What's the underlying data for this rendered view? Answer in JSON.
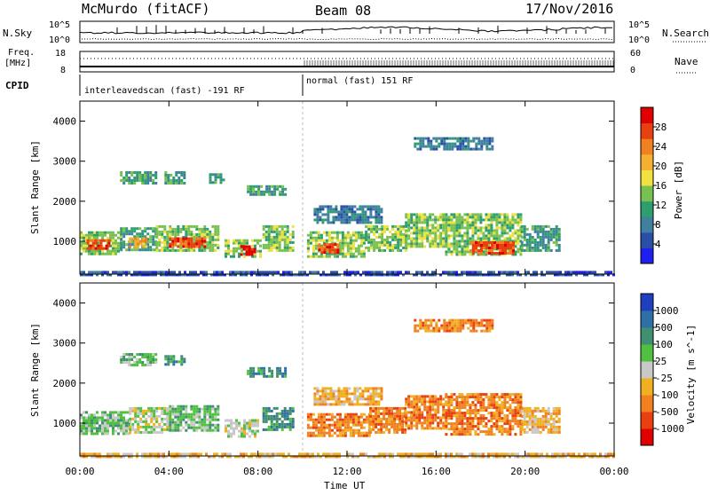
{
  "header": {
    "station": "McMurdo (fitACF)",
    "beam": "Beam 08",
    "date": "17/Nov/2016"
  },
  "noise_panel": {
    "left_label": "N.Sky",
    "right_label": "N.Search",
    "left_top_tick": "10^5",
    "left_bottom_tick": "10^0",
    "right_top_tick": "10^5",
    "right_bottom_tick": "10^0"
  },
  "freq_panel": {
    "left_label_1": "Freq.",
    "left_label_2": "[MHz]",
    "left_top_tick": "18",
    "left_bottom_tick": "8",
    "right_label": "Nave",
    "right_top_tick": "60",
    "right_bottom_tick": "0"
  },
  "cpid_panel": {
    "label": "CPID",
    "segments": [
      {
        "text": "interleavedscan (fast) -191 RF",
        "start_hour": 0
      },
      {
        "text": "normal (fast) 151 RF",
        "start_hour": 10
      }
    ]
  },
  "x_axis": {
    "label": "Time UT",
    "ticks": [
      "00:00",
      "04:00",
      "08:00",
      "12:00",
      "16:00",
      "20:00",
      "00:00"
    ],
    "tick_hours": [
      0,
      4,
      8,
      12,
      16,
      20,
      24
    ]
  },
  "power_panel": {
    "ylabel": "Slant Range [km]",
    "yticks": [
      "1000",
      "2000",
      "3000",
      "4000"
    ],
    "cbar_label": "Power [dB]",
    "cbar_ticks": [
      "4",
      "8",
      "12",
      "16",
      "20",
      "24",
      "28"
    ],
    "cbar_colors": [
      "#1f1fef",
      "#2a4fa6",
      "#3f7fa0",
      "#2e9e6e",
      "#78c050",
      "#f0e040",
      "#f5b030",
      "#f08020",
      "#e84010",
      "#e00000"
    ]
  },
  "velocity_panel": {
    "ylabel": "Slant Range [km]",
    "yticks": [
      "1000",
      "2000",
      "3000",
      "4000"
    ],
    "cbar_label": "Velocity [m s^-1]",
    "cbar_ticks": [
      "1000",
      "500",
      "100",
      "25",
      "-25",
      "-100",
      "-500",
      "-1000"
    ],
    "cbar_colors": [
      "#1f3fbf",
      "#2f6fa8",
      "#3f8f70",
      "#50c040",
      "#c8c8c8",
      "#f0b020",
      "#f08020",
      "#e84010",
      "#e00000"
    ]
  },
  "chart_data": {
    "type": "heatmap",
    "x_range_hours": [
      0,
      24
    ],
    "y_range_km": [
      180,
      4500
    ],
    "power_regions": [
      {
        "t0": 0.0,
        "t1": 1.8,
        "r0": 700,
        "r1": 1250,
        "level": 4
      },
      {
        "t0": 0.3,
        "t1": 1.3,
        "r0": 820,
        "r1": 1050,
        "level": 8
      },
      {
        "t0": 1.8,
        "t1": 3.4,
        "r0": 780,
        "r1": 1350,
        "level": 3
      },
      {
        "t0": 2.2,
        "t1": 3.0,
        "r0": 900,
        "r1": 1100,
        "level": 6
      },
      {
        "t0": 3.4,
        "t1": 6.2,
        "r0": 750,
        "r1": 1400,
        "level": 4
      },
      {
        "t0": 4.0,
        "t1": 5.6,
        "r0": 850,
        "r1": 1100,
        "level": 8
      },
      {
        "t0": 6.5,
        "t1": 8.1,
        "r0": 650,
        "r1": 1050,
        "level": 4
      },
      {
        "t0": 7.2,
        "t1": 7.9,
        "r0": 700,
        "r1": 900,
        "level": 9
      },
      {
        "t0": 8.2,
        "t1": 9.6,
        "r0": 800,
        "r1": 1400,
        "level": 4
      },
      {
        "t0": 10.2,
        "t1": 12.8,
        "r0": 650,
        "r1": 1250,
        "level": 4
      },
      {
        "t0": 10.7,
        "t1": 11.6,
        "r0": 700,
        "r1": 950,
        "level": 8
      },
      {
        "t0": 12.8,
        "t1": 14.6,
        "r0": 800,
        "r1": 1400,
        "level": 4
      },
      {
        "t0": 14.6,
        "t1": 16.4,
        "r0": 850,
        "r1": 1700,
        "level": 4
      },
      {
        "t0": 16.4,
        "t1": 19.8,
        "r0": 700,
        "r1": 1700,
        "level": 4
      },
      {
        "t0": 17.5,
        "t1": 19.5,
        "r0": 700,
        "r1": 1000,
        "level": 8
      },
      {
        "t0": 19.8,
        "t1": 21.5,
        "r0": 800,
        "r1": 1400,
        "level": 3
      },
      {
        "t0": 1.8,
        "t1": 3.4,
        "r0": 2450,
        "r1": 2750,
        "level": 3
      },
      {
        "t0": 3.8,
        "t1": 4.7,
        "r0": 2450,
        "r1": 2750,
        "level": 3
      },
      {
        "t0": 5.8,
        "t1": 6.5,
        "r0": 2450,
        "r1": 2700,
        "level": 3
      },
      {
        "t0": 7.5,
        "t1": 9.2,
        "r0": 2200,
        "r1": 2400,
        "level": 3
      },
      {
        "t0": 10.5,
        "t1": 13.5,
        "r0": 1500,
        "r1": 1900,
        "level": 2
      },
      {
        "t0": 15.0,
        "t1": 18.5,
        "r0": 3300,
        "r1": 3600,
        "level": 2
      },
      {
        "t0": 0.0,
        "t1": 24.0,
        "r0": 180,
        "r1": 260,
        "level": 1
      }
    ],
    "velocity_regions": [
      {
        "t0": 0.0,
        "t1": 2.2,
        "r0": 750,
        "r1": 1300,
        "level": 3
      },
      {
        "t0": 2.2,
        "t1": 4.0,
        "r0": 800,
        "r1": 1400,
        "level": 4
      },
      {
        "t0": 4.0,
        "t1": 6.2,
        "r0": 800,
        "r1": 1450,
        "level": 3
      },
      {
        "t0": 6.5,
        "t1": 8.0,
        "r0": 700,
        "r1": 1100,
        "level": 4
      },
      {
        "t0": 8.2,
        "t1": 9.6,
        "r0": 850,
        "r1": 1400,
        "level": 2
      },
      {
        "t0": 10.2,
        "t1": 13.0,
        "r0": 700,
        "r1": 1250,
        "level": 6
      },
      {
        "t0": 13.0,
        "t1": 14.6,
        "r0": 800,
        "r1": 1400,
        "level": 6
      },
      {
        "t0": 14.6,
        "t1": 16.4,
        "r0": 850,
        "r1": 1700,
        "level": 6
      },
      {
        "t0": 16.4,
        "t1": 19.8,
        "r0": 700,
        "r1": 1750,
        "level": 6
      },
      {
        "t0": 19.8,
        "t1": 21.5,
        "r0": 800,
        "r1": 1400,
        "level": 5
      },
      {
        "t0": 1.8,
        "t1": 3.4,
        "r0": 2450,
        "r1": 2750,
        "level": 3
      },
      {
        "t0": 3.8,
        "t1": 4.7,
        "r0": 2450,
        "r1": 2700,
        "level": 2
      },
      {
        "t0": 7.5,
        "t1": 9.2,
        "r0": 2150,
        "r1": 2400,
        "level": 2
      },
      {
        "t0": 10.5,
        "t1": 13.5,
        "r0": 1500,
        "r1": 1900,
        "level": 5
      },
      {
        "t0": 15.0,
        "t1": 18.5,
        "r0": 3300,
        "r1": 3600,
        "level": 6
      },
      {
        "t0": 0.0,
        "t1": 24.0,
        "r0": 180,
        "r1": 260,
        "level": 5
      }
    ]
  }
}
